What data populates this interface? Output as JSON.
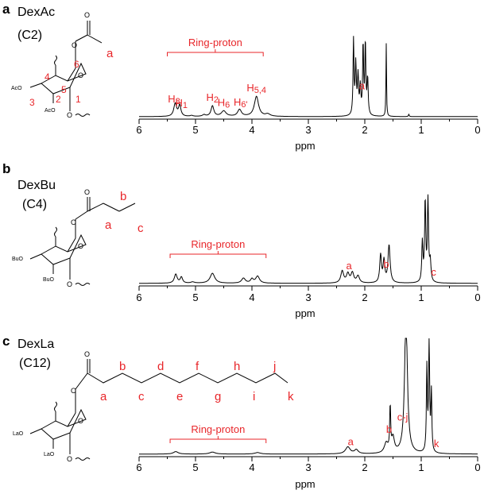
{
  "colors": {
    "annotation": "#e8262a",
    "spectrum": "#000000"
  },
  "chart_data": [
    {
      "type": "line",
      "panel": "a",
      "compound": "DexAc",
      "chain": "(C2)",
      "xlabel": "ppm",
      "xlim": [
        6,
        0
      ],
      "xticks": [
        "6",
        "5",
        "4",
        "3",
        "2",
        "1",
        "0"
      ],
      "ring_bracket": {
        "label": "Ring-proton",
        "from_ppm": 5.5,
        "to_ppm": 3.8
      },
      "peak_labels": [
        {
          "text": "H3",
          "ppm": 5.38
        },
        {
          "text": "H1",
          "ppm": 5.25
        },
        {
          "text": "H2",
          "ppm": 4.7
        },
        {
          "text": "H6",
          "ppm": 4.5
        },
        {
          "text": "H6'",
          "ppm": 4.2
        },
        {
          "text": "H5,4",
          "ppm": 3.92
        },
        {
          "text": "a",
          "ppm": 2.05
        }
      ],
      "structure_labels": [
        "a",
        "6",
        "5",
        "4",
        "3",
        "2",
        "1"
      ],
      "peaks": [
        {
          "ppm": 5.36,
          "height": 0.14,
          "width": 0.03
        },
        {
          "ppm": 5.28,
          "height": 0.12,
          "width": 0.025
        },
        {
          "ppm": 5.07,
          "height": 0.01,
          "width": 0.03
        },
        {
          "ppm": 4.85,
          "height": 0.018,
          "width": 0.03
        },
        {
          "ppm": 4.7,
          "height": 0.115,
          "width": 0.03
        },
        {
          "ppm": 4.5,
          "height": 0.06,
          "width": 0.05
        },
        {
          "ppm": 4.22,
          "height": 0.075,
          "width": 0.04
        },
        {
          "ppm": 3.92,
          "height": 0.22,
          "width": 0.045
        },
        {
          "ppm": 3.72,
          "height": 0.025,
          "width": 0.05
        },
        {
          "ppm": 2.2,
          "height": 0.82,
          "width": 0.01
        },
        {
          "ppm": 2.16,
          "height": 0.55,
          "width": 0.012
        },
        {
          "ppm": 2.12,
          "height": 0.42,
          "width": 0.012
        },
        {
          "ppm": 2.08,
          "height": 0.3,
          "width": 0.012
        },
        {
          "ppm": 2.03,
          "height": 0.78,
          "width": 0.01
        },
        {
          "ppm": 1.99,
          "height": 0.8,
          "width": 0.01
        },
        {
          "ppm": 1.95,
          "height": 0.4,
          "width": 0.012
        },
        {
          "ppm": 1.62,
          "height": 0.8,
          "width": 0.006
        },
        {
          "ppm": 1.22,
          "height": 0.025,
          "width": 0.008
        }
      ]
    },
    {
      "type": "line",
      "panel": "b",
      "compound": "DexBu",
      "chain": "(C4)",
      "xlabel": "ppm",
      "xlim": [
        6,
        0
      ],
      "xticks": [
        "6",
        "5",
        "4",
        "3",
        "2",
        "1",
        "0"
      ],
      "ring_bracket": {
        "label": "Ring-proton",
        "from_ppm": 5.45,
        "to_ppm": 3.75
      },
      "peak_labels": [
        {
          "text": "a",
          "ppm": 2.28
        },
        {
          "text": "b",
          "ppm": 1.62
        },
        {
          "text": "c",
          "ppm": 0.78
        }
      ],
      "structure_labels": [
        "b",
        "a",
        "c"
      ],
      "peaks": [
        {
          "ppm": 5.35,
          "height": 0.09,
          "width": 0.03
        },
        {
          "ppm": 5.25,
          "height": 0.06,
          "width": 0.025
        },
        {
          "ppm": 5.05,
          "height": 0.012,
          "width": 0.04
        },
        {
          "ppm": 4.7,
          "height": 0.1,
          "width": 0.05
        },
        {
          "ppm": 4.15,
          "height": 0.05,
          "width": 0.04
        },
        {
          "ppm": 4.0,
          "height": 0.04,
          "width": 0.03
        },
        {
          "ppm": 3.9,
          "height": 0.07,
          "width": 0.04
        },
        {
          "ppm": 2.4,
          "height": 0.12,
          "width": 0.03
        },
        {
          "ppm": 2.3,
          "height": 0.09,
          "width": 0.03
        },
        {
          "ppm": 2.22,
          "height": 0.1,
          "width": 0.03
        },
        {
          "ppm": 2.12,
          "height": 0.07,
          "width": 0.03
        },
        {
          "ppm": 1.72,
          "height": 0.28,
          "width": 0.018
        },
        {
          "ppm": 1.66,
          "height": 0.22,
          "width": 0.018
        },
        {
          "ppm": 1.57,
          "height": 0.38,
          "width": 0.022
        },
        {
          "ppm": 0.98,
          "height": 0.4,
          "width": 0.012
        },
        {
          "ppm": 0.93,
          "height": 0.82,
          "width": 0.012
        },
        {
          "ppm": 0.88,
          "height": 0.82,
          "width": 0.012
        },
        {
          "ppm": 0.84,
          "height": 0.2,
          "width": 0.015
        }
      ]
    },
    {
      "type": "line",
      "panel": "c",
      "compound": "DexLa",
      "chain": "(C12)",
      "xlabel": "ppm",
      "xlim": [
        6,
        0
      ],
      "xticks": [
        "6",
        "5",
        "4",
        "3",
        "2",
        "1",
        "0"
      ],
      "ring_bracket": {
        "label": "Ring-proton",
        "from_ppm": 5.45,
        "to_ppm": 3.75
      },
      "peak_labels": [
        {
          "text": "a",
          "ppm": 2.25
        },
        {
          "text": "b",
          "ppm": 1.57
        },
        {
          "text": "c-j",
          "ppm": 1.33
        },
        {
          "text": "k",
          "ppm": 0.73
        }
      ],
      "structure_labels": [
        "b",
        "d",
        "f",
        "h",
        "j",
        "a",
        "c",
        "e",
        "g",
        "i",
        "k"
      ],
      "peaks": [
        {
          "ppm": 5.35,
          "height": 0.025,
          "width": 0.05
        },
        {
          "ppm": 4.7,
          "height": 0.02,
          "width": 0.06
        },
        {
          "ppm": 3.9,
          "height": 0.015,
          "width": 0.06
        },
        {
          "ppm": 2.3,
          "height": 0.07,
          "width": 0.05
        },
        {
          "ppm": 2.15,
          "height": 0.04,
          "width": 0.04
        },
        {
          "ppm": 1.62,
          "height": 0.1,
          "width": 0.04
        },
        {
          "ppm": 1.55,
          "height": 0.45,
          "width": 0.01
        },
        {
          "ppm": 1.5,
          "height": 0.15,
          "width": 0.03
        },
        {
          "ppm": 1.27,
          "height": 1.4,
          "width": 0.03
        },
        {
          "ppm": 0.9,
          "height": 0.85,
          "width": 0.01
        },
        {
          "ppm": 0.86,
          "height": 1.2,
          "width": 0.01
        },
        {
          "ppm": 0.82,
          "height": 0.6,
          "width": 0.01
        }
      ]
    }
  ]
}
